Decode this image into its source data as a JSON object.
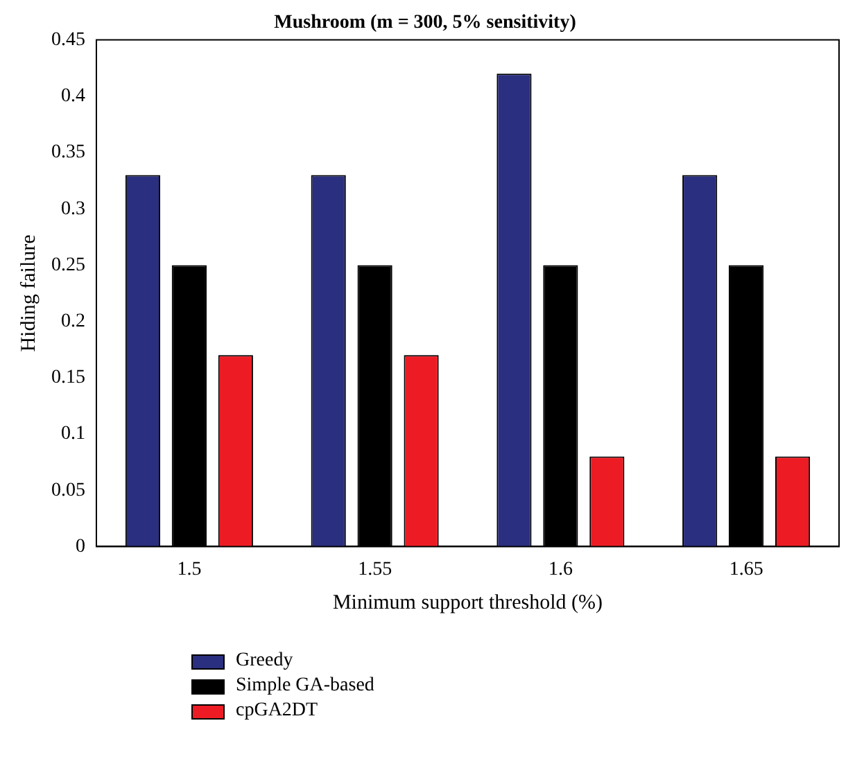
{
  "chart_data": {
    "type": "bar",
    "title": "Mushroom (m = 300, 5% sensitivity)",
    "xlabel": "Minimum support threshold (%)",
    "ylabel": "Hiding failure",
    "categories": [
      "1.5",
      "1.55",
      "1.6",
      "1.65"
    ],
    "series": [
      {
        "name": "Greedy",
        "color": "#2b2f7f",
        "values": [
          0.33,
          0.33,
          0.42,
          0.33
        ]
      },
      {
        "name": "Simple GA-based",
        "color": "#000000",
        "values": [
          0.25,
          0.25,
          0.25,
          0.25
        ]
      },
      {
        "name": "cpGA2DT",
        "color": "#ed1c24",
        "values": [
          0.17,
          0.17,
          0.08,
          0.08
        ]
      }
    ],
    "ylim": [
      0,
      0.45
    ],
    "yticks": [
      0,
      0.05,
      0.1,
      0.15,
      0.2,
      0.25,
      0.3,
      0.35,
      0.4,
      0.45
    ],
    "grid": false,
    "legend": "bottom left"
  }
}
